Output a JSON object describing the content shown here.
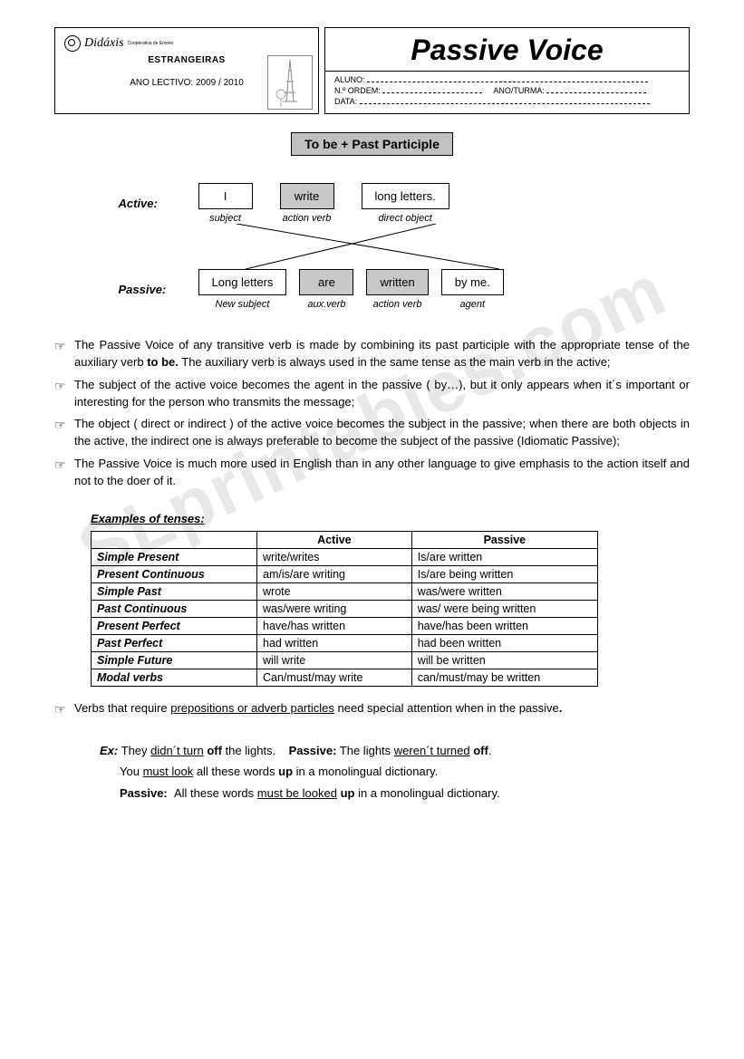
{
  "header": {
    "logo_name": "Didáxis",
    "logo_sub": "Cooperativa de Ensino",
    "dept": "ESTRANGEIRAS",
    "ano_label": "ANO LECTIVO:",
    "ano_value": "2009 / 2010",
    "title": "Passive Voice",
    "field_aluno": "ALUNO:",
    "field_nordem": "N.º ORDEM:",
    "field_turma": "ANO/TURMA:",
    "field_data": "DATA:"
  },
  "formula": "To be + Past Participle",
  "diagram": {
    "active_label": "Active:",
    "passive_label": "Passive:",
    "active": {
      "c1": {
        "word": "I",
        "sub": "subject"
      },
      "c2": {
        "word": "write",
        "sub": "action verb"
      },
      "c3": {
        "word": "long letters.",
        "sub": "direct object"
      }
    },
    "passive": {
      "c1": {
        "word": "Long letters",
        "sub": "New subject"
      },
      "c2": {
        "word": "are",
        "sub": "aux.verb"
      },
      "c3": {
        "word": "written",
        "sub": "action verb"
      },
      "c4": {
        "word": "by me.",
        "sub": "agent"
      }
    }
  },
  "bullets": [
    "The Passive Voice of any transitive verb is made by combining its past participle with the appropriate tense of the auxiliary verb <b>to be.</b> The auxiliary verb is always used in the same tense as the main verb in the active;",
    "The subject of the active voice becomes the agent in the passive ( by…), but it only appears when it´s important or interesting for the person who transmits the message;",
    "The object ( direct or indirect ) of the active voice becomes the subject in the passive; when there are both objects in the active, the indirect one is always preferable to become the subject of the passive (Idiomatic Passive);",
    "The Passive Voice is much more used in English than in any other language to give emphasis to the action itself and not to the doer of it."
  ],
  "examples_title": "Examples of tenses:",
  "table": {
    "headers": [
      "",
      "Active",
      "Passive"
    ],
    "rows": [
      [
        "Simple Present",
        "write/writes",
        "Is/are written"
      ],
      [
        "Present Continuous",
        "am/is/are writing",
        "Is/are being written"
      ],
      [
        "Simple Past",
        "wrote",
        "was/were written"
      ],
      [
        "Past Continuous",
        "was/were writing",
        "was/ were being written"
      ],
      [
        "Present Perfect",
        "have/has written",
        "have/has been written"
      ],
      [
        "Past Perfect",
        "had written",
        "had been written"
      ],
      [
        "Simple Future",
        "will write",
        "will be written"
      ],
      [
        "Modal verbs",
        "Can/must/may write",
        "can/must/may be written"
      ]
    ]
  },
  "note_bullet": "Verbs that require <u>prepositions or adverb particles</u> need special attention when in the passive<b>.</b>",
  "examples": {
    "ex_label": "Ex:",
    "line1_a": "They <u>didn´t turn</u> <b>off</b> the lights.",
    "line1_p_label": "Passive:",
    "line1_p": "The lights <u>weren´t turned</u> <b>off</b>.",
    "line2": "You <u>must look</u> all these words <b>up</b> in a monolingual dictionary.",
    "line3_label": "Passive:",
    "line3": "All these words <u>must be looked</u> <b>up</b> in a monolingual dictionary."
  },
  "watermark": "SLprintables.com"
}
